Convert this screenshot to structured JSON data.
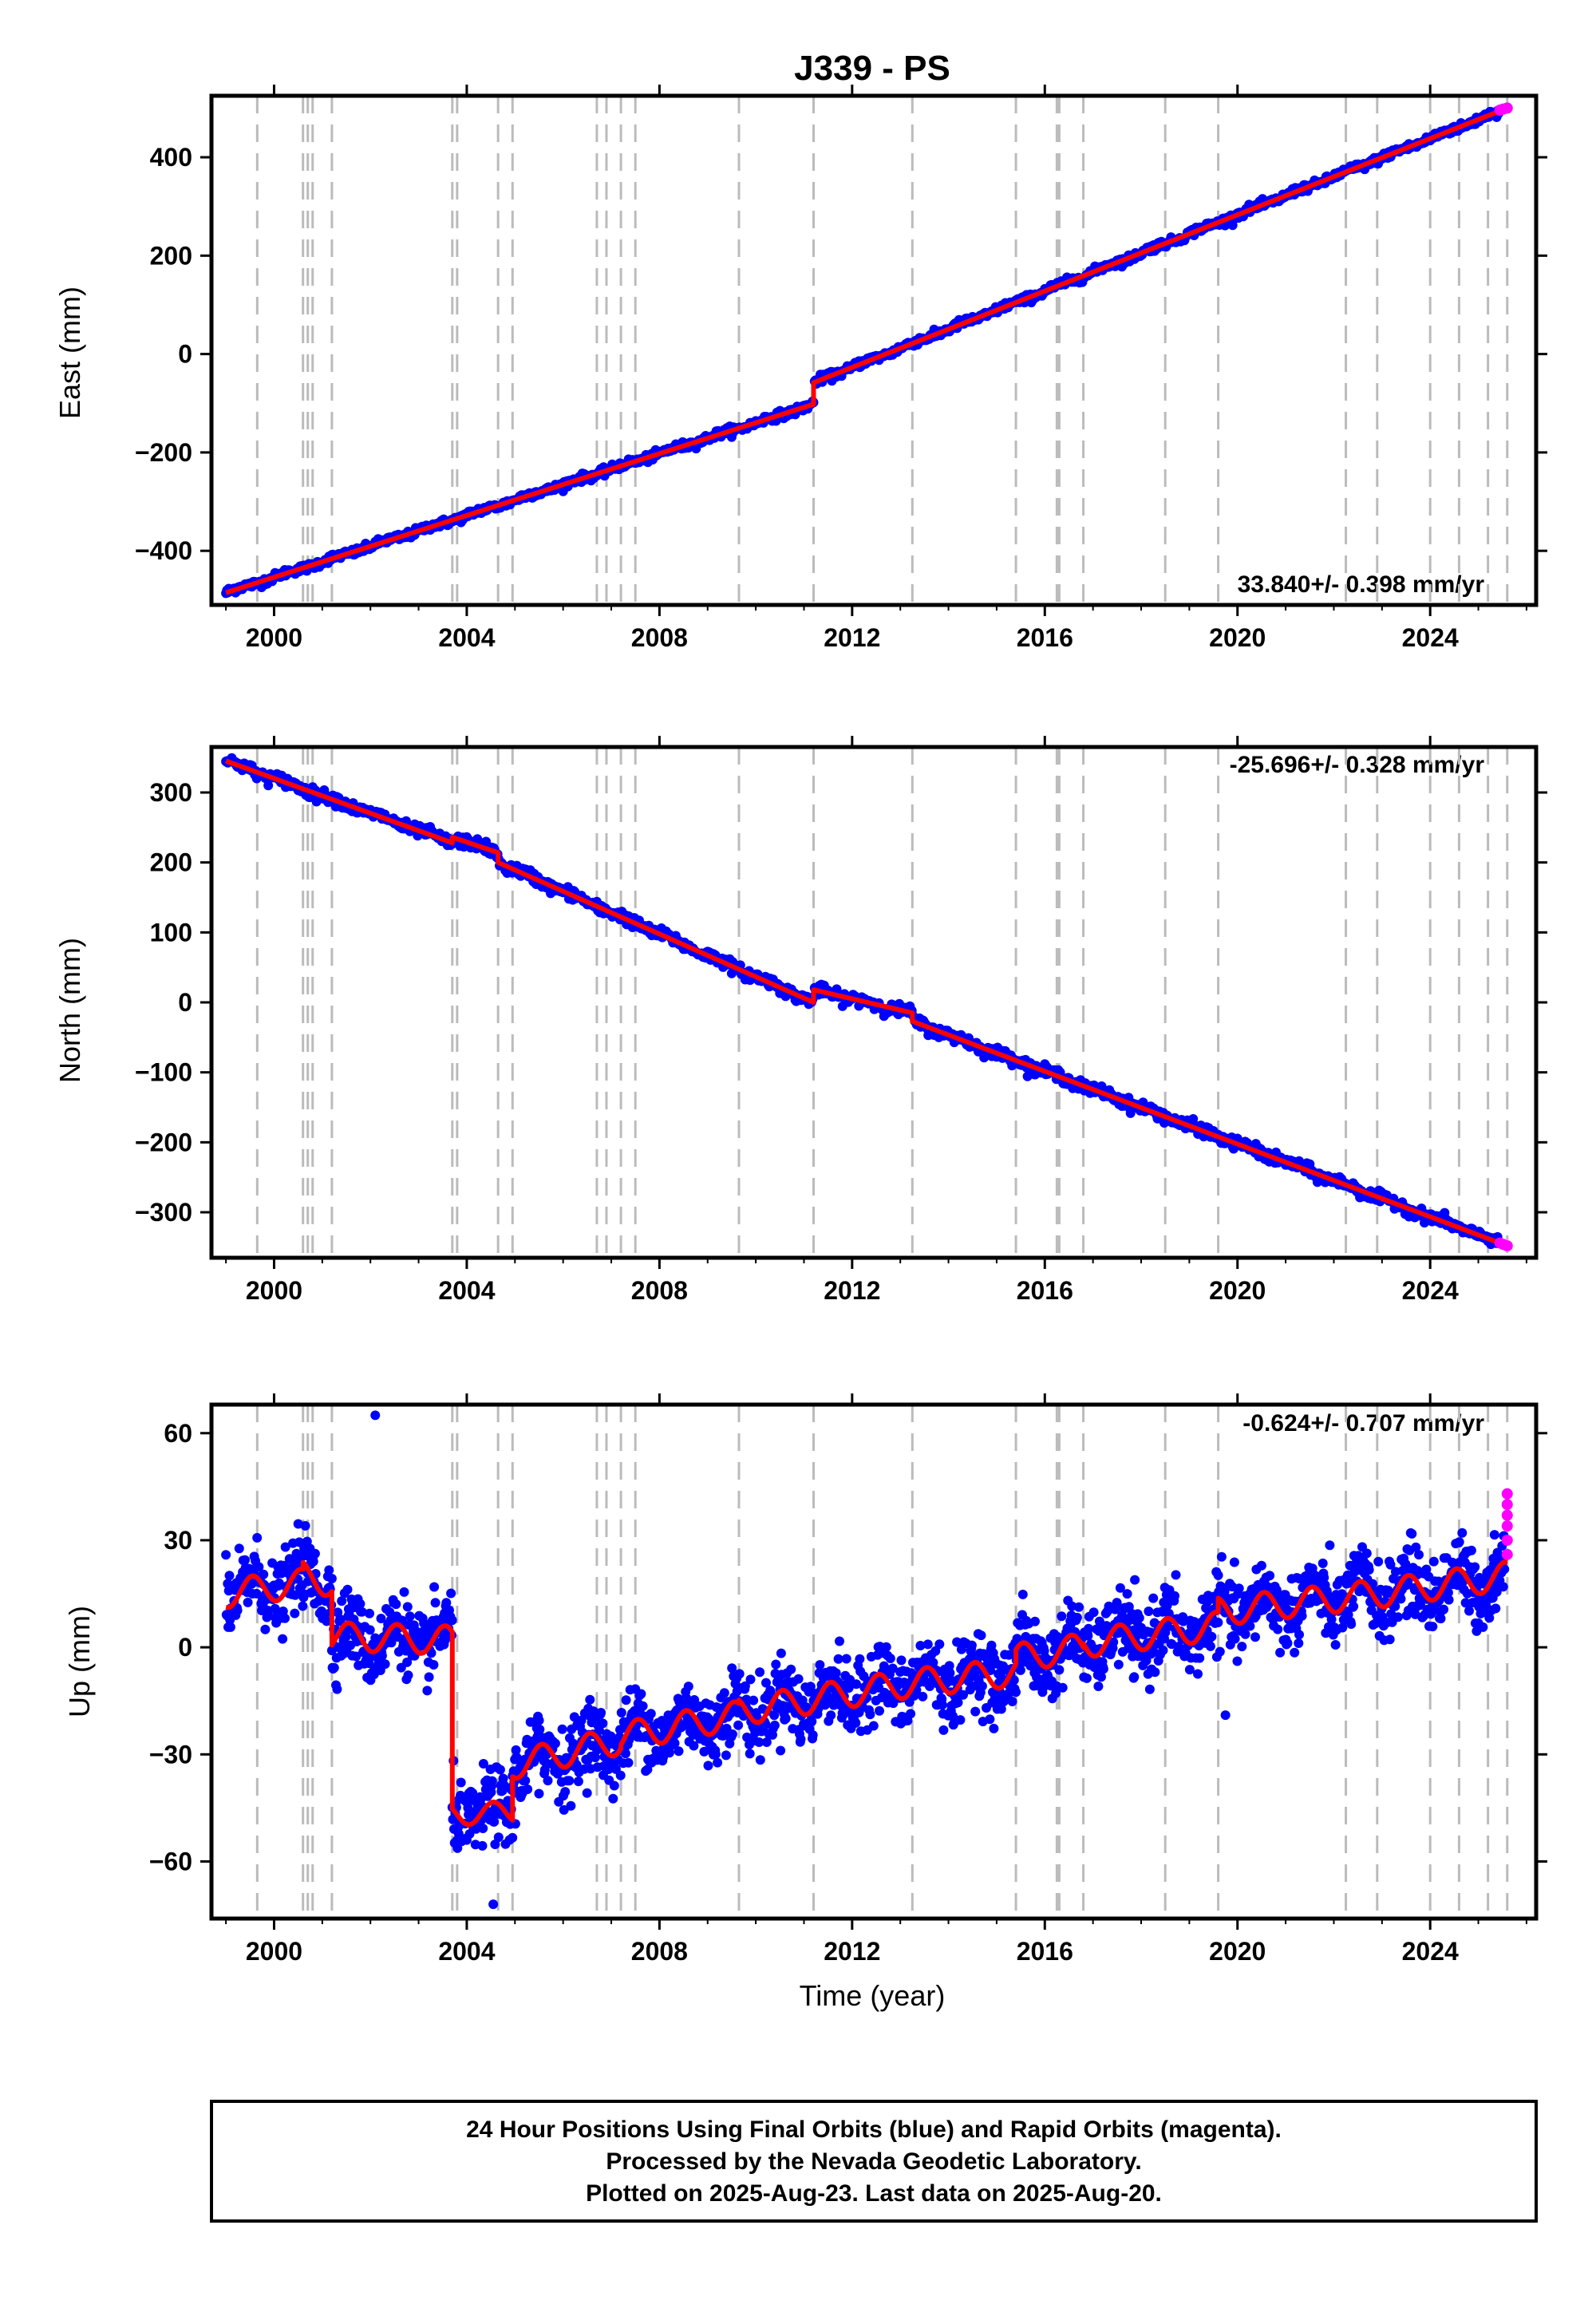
{
  "title": "J339 - PS",
  "colors": {
    "final_orbits": "#0000ff",
    "rapid_orbits": "#ff00ff",
    "model": "#ff0000",
    "offsets": "#bbbbbb"
  },
  "offset_lines": [
    1999.65,
    2000.6,
    2000.7,
    2000.8,
    2001.2,
    2003.7,
    2003.8,
    2004.65,
    2004.95,
    2006.7,
    2006.9,
    2007.2,
    2007.5,
    2009.65,
    2011.2,
    2013.25,
    2015.4,
    2016.25,
    2016.3,
    2016.8,
    2018.5,
    2019.6,
    2022.25,
    2022.9,
    2024.0,
    2024.6,
    2025.2,
    2025.6
  ],
  "chart_data": [
    {
      "type": "scatter",
      "component": "east",
      "ylabel": "East (mm)",
      "xlim": [
        1998.7,
        2026.2
      ],
      "ylim": [
        -510,
        525
      ],
      "x_ticks": [
        2000,
        2004,
        2008,
        2012,
        2016,
        2020,
        2024
      ],
      "y_ticks": [
        -400,
        -200,
        0,
        200,
        400
      ],
      "y_tick_labels": [
        "−400",
        "−200",
        "0",
        "200",
        "400"
      ],
      "rate_label": "33.840+/- 0.398 mm/yr",
      "rate_position": "bottom-right",
      "series": [
        {
          "name": "Final Orbits",
          "model_x": [
            1999.0,
            2011.2,
            2011.2,
            2025.6
          ],
          "model_y": [
            -485,
            -102,
            -58,
            500
          ],
          "scatter": 4,
          "offset_year": 2011.2,
          "offset_mm": 44
        },
        {
          "name": "Rapid Orbits",
          "x": [
            2025.45,
            2025.52,
            2025.6
          ],
          "y": [
            496,
            498,
            500
          ]
        }
      ]
    },
    {
      "type": "scatter",
      "component": "north",
      "ylabel": "North (mm)",
      "xlim": [
        1998.7,
        2026.2
      ],
      "ylim": [
        -365,
        365
      ],
      "x_ticks": [
        2000,
        2004,
        2008,
        2012,
        2016,
        2020,
        2024
      ],
      "y_ticks": [
        -300,
        -200,
        -100,
        0,
        100,
        200,
        300
      ],
      "y_tick_labels": [
        "−300",
        "−200",
        "−100",
        "0",
        "100",
        "200",
        "300"
      ],
      "rate_label": "-25.696+/- 0.328 mm/yr",
      "rate_position": "top-right",
      "series": [
        {
          "name": "Final Orbits",
          "model_x": [
            1999.0,
            2003.7,
            2003.7,
            2004.65,
            2004.65,
            2011.2,
            2011.2,
            2013.25,
            2013.25,
            2025.6
          ],
          "model_y": [
            345,
            228,
            236,
            214,
            200,
            0,
            18,
            -15,
            -27,
            -348
          ],
          "scatter": 4
        },
        {
          "name": "Rapid Orbits",
          "x": [
            2025.45,
            2025.52,
            2025.6
          ],
          "y": [
            -344,
            -346,
            -348
          ]
        }
      ]
    },
    {
      "type": "scatter",
      "component": "up",
      "ylabel": "Up (mm)",
      "xlabel": "Time (year)",
      "xlim": [
        1998.7,
        2026.2
      ],
      "ylim": [
        -76,
        68
      ],
      "x_ticks": [
        2000,
        2004,
        2008,
        2012,
        2016,
        2020,
        2024
      ],
      "y_ticks": [
        -60,
        -30,
        0,
        30,
        60
      ],
      "y_tick_labels": [
        "−60",
        "−30",
        "0",
        "30",
        "60"
      ],
      "rate_label": "-0.624+/- 0.707 mm/yr",
      "rate_position": "top-right",
      "series": [
        {
          "name": "Final Orbits",
          "segments": [
            {
              "x": [
                1999.0,
                2000.6
              ],
              "base": [
                15,
                18
              ],
              "amp": 4
            },
            {
              "x": [
                2000.6,
                2001.2
              ],
              "base": [
                20,
                18
              ],
              "amp": 4
            },
            {
              "x": [
                2001.2,
                2003.7
              ],
              "base": [
                3,
                2
              ],
              "amp": 4
            },
            {
              "x": [
                2003.7,
                2004.95
              ],
              "base": [
                -47,
                -46
              ],
              "amp": 3
            },
            {
              "x": [
                2004.95,
                2007.2
              ],
              "base": [
                -33,
                -26
              ],
              "amp": 4
            },
            {
              "x": [
                2007.2,
                2009.65
              ],
              "base": [
                -25,
                -19
              ],
              "amp": 4
            },
            {
              "x": [
                2009.65,
                2013.25
              ],
              "base": [
                -18,
                -10
              ],
              "amp": 4
            },
            {
              "x": [
                2013.25,
                2015.4
              ],
              "base": [
                -10,
                -7
              ],
              "amp": 4
            },
            {
              "x": [
                2015.4,
                2016.8
              ],
              "base": [
                -3,
                0
              ],
              "amp": 4
            },
            {
              "x": [
                2016.8,
                2019.6
              ],
              "base": [
                1,
                6
              ],
              "amp": 4
            },
            {
              "x": [
                2019.6,
                2022.9
              ],
              "base": [
                10,
                15
              ],
              "amp": 4
            },
            {
              "x": [
                2022.9,
                2025.6
              ],
              "base": [
                15,
                20
              ],
              "amp": 4
            }
          ],
          "scatter": 9,
          "outliers": [
            [
              2002.1,
              65
            ],
            [
              2004.55,
              -72
            ],
            [
              2019.75,
              -19
            ],
            [
              2005.5,
              -41
            ]
          ]
        },
        {
          "name": "Rapid Orbits",
          "x": [
            2025.6,
            2025.6,
            2025.6,
            2025.6,
            2025.6,
            2025.6
          ],
          "y": [
            43,
            40,
            37,
            34,
            30,
            26
          ]
        }
      ]
    }
  ],
  "footer": {
    "line1": "24 Hour Positions Using Final Orbits (blue) and Rapid Orbits (magenta).",
    "line2": "Processed by the Nevada Geodetic Laboratory.",
    "line3": "Plotted on 2025-Aug-23. Last data on 2025-Aug-20."
  }
}
